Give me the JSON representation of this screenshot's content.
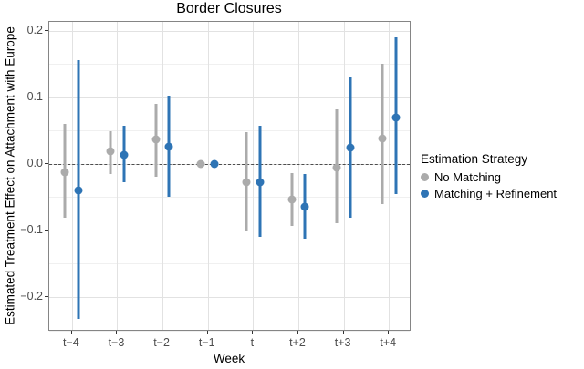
{
  "chart_data": {
    "type": "scatter",
    "subtype": "pointrange-errorbar",
    "title": "Border Closures",
    "xlabel": "Week",
    "ylabel": "Estimated Treatment Effect on Attachment with Europe",
    "legend_title": "Estimation Strategy",
    "legend_position": "right",
    "grid": true,
    "zero_reference_line": 0.0,
    "ylim": [
      -0.252,
      0.213
    ],
    "y_ticks": [
      {
        "label": "0.2",
        "value": 0.2
      },
      {
        "label": "0.1",
        "value": 0.1
      },
      {
        "label": "0.0",
        "value": 0.0
      },
      {
        "label": "−0.1",
        "value": -0.1
      },
      {
        "label": "−0.2",
        "value": -0.2
      }
    ],
    "y_minor_ticks": [
      0.15,
      0.05,
      -0.05,
      -0.15,
      -0.25
    ],
    "categories": [
      "t−4",
      "t−3",
      "t−2",
      "t−1",
      "t",
      "t+2",
      "t+3",
      "t+4"
    ],
    "series": [
      {
        "name": "No Matching",
        "color": "#ababab",
        "estimates": [
          -0.012,
          0.019,
          0.036,
          0.0,
          -0.028,
          -0.054,
          -0.006,
          0.038
        ],
        "ci_low": [
          -0.081,
          -0.015,
          -0.019,
          0.0,
          -0.101,
          -0.093,
          -0.089,
          -0.06
        ],
        "ci_high": [
          0.06,
          0.049,
          0.09,
          0.0,
          0.047,
          -0.014,
          0.082,
          0.15
        ]
      },
      {
        "name": "Matching + Refinement",
        "color": "#2e74b5",
        "estimates": [
          -0.04,
          0.014,
          0.025,
          0.0,
          -0.028,
          -0.065,
          0.024,
          0.07
        ],
        "ci_low": [
          -0.233,
          -0.028,
          -0.049,
          0.0,
          -0.11,
          -0.112,
          -0.081,
          -0.045
        ],
        "ci_high": [
          0.155,
          0.057,
          0.102,
          0.0,
          0.057,
          -0.016,
          0.13,
          0.19
        ]
      }
    ]
  }
}
